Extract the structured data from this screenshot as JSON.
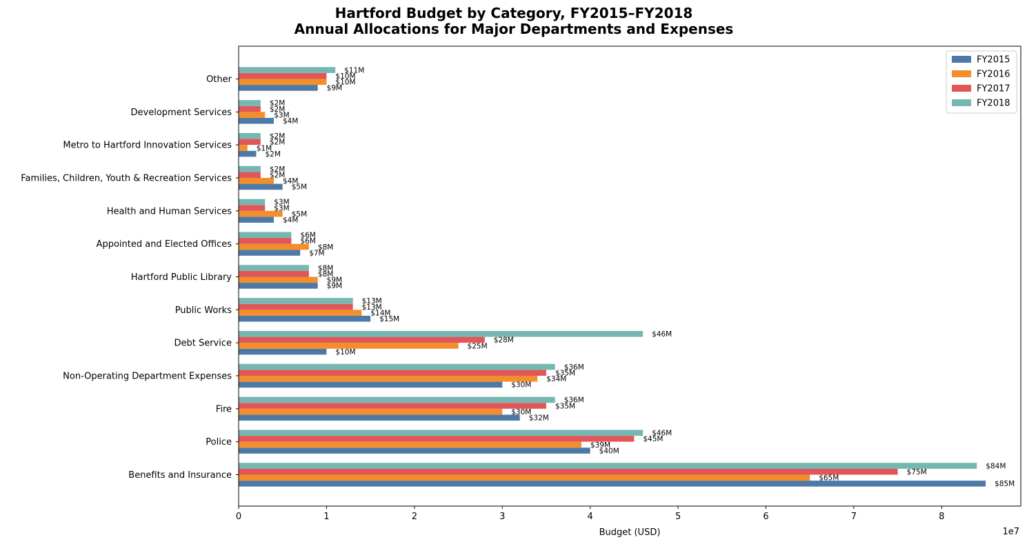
{
  "chart_data": {
    "type": "bar",
    "orientation": "horizontal",
    "title": "Hartford Budget by Category, FY2015–FY2018",
    "subtitle": "Annual Allocations for Major Departments and Expenses",
    "xlabel": "Budget (USD)",
    "ylabel": "",
    "x_scale_note": "1e7",
    "xlim": [
      0,
      89000000
    ],
    "x_ticks": [
      0,
      10000000,
      20000000,
      30000000,
      40000000,
      50000000,
      60000000,
      70000000,
      80000000
    ],
    "x_tick_labels": [
      "0",
      "1",
      "2",
      "3",
      "4",
      "5",
      "6",
      "7",
      "8"
    ],
    "grid": false,
    "legend_position": "top-right",
    "categories": [
      "Benefits and Insurance",
      "Police",
      "Fire",
      "Non-Operating Department Expenses",
      "Debt Service",
      "Public Works",
      "Hartford Public Library",
      "Appointed and Elected Offices",
      "Health and Human Services",
      "Families, Children, Youth & Recreation Services",
      "Metro to Hartford Innovation Services",
      "Development Services",
      "Other"
    ],
    "series": [
      {
        "name": "FY2015",
        "color": "#4e79a7",
        "values": [
          85000000,
          40000000,
          32000000,
          30000000,
          10000000,
          15000000,
          9000000,
          7000000,
          4000000,
          5000000,
          2000000,
          4000000,
          9000000
        ],
        "labels": [
          "$85M",
          "$40M",
          "$32M",
          "$30M",
          "$10M",
          "$15M",
          "$9M",
          "$7M",
          "$4M",
          "$5M",
          "$2M",
          "$4M",
          "$9M"
        ]
      },
      {
        "name": "FY2016",
        "color": "#f28e2b",
        "values": [
          65000000,
          39000000,
          30000000,
          34000000,
          25000000,
          14000000,
          9000000,
          8000000,
          5000000,
          4000000,
          1000000,
          3000000,
          10000000
        ],
        "labels": [
          "$65M",
          "$39M",
          "$30M",
          "$34M",
          "$25M",
          "$14M",
          "$9M",
          "$8M",
          "$5M",
          "$4M",
          "$1M",
          "$3M",
          "$10M"
        ]
      },
      {
        "name": "FY2017",
        "color": "#e15759",
        "values": [
          75000000,
          45000000,
          35000000,
          35000000,
          28000000,
          13000000,
          8000000,
          6000000,
          3000000,
          2500000,
          2500000,
          2500000,
          10000000
        ],
        "labels": [
          "$75M",
          "$45M",
          "$35M",
          "$35M",
          "$28M",
          "$13M",
          "$8M",
          "$6M",
          "$3M",
          "$2M",
          "$2M",
          "$2M",
          "$10M"
        ]
      },
      {
        "name": "FY2018",
        "color": "#76b7b2",
        "values": [
          84000000,
          46000000,
          36000000,
          36000000,
          46000000,
          13000000,
          8000000,
          6000000,
          3000000,
          2500000,
          2500000,
          2500000,
          11000000
        ],
        "labels": [
          "$84M",
          "$46M",
          "$36M",
          "$36M",
          "$46M",
          "$13M",
          "$8M",
          "$6M",
          "$3M",
          "$2M",
          "$2M",
          "$2M",
          "$11M"
        ]
      }
    ]
  }
}
